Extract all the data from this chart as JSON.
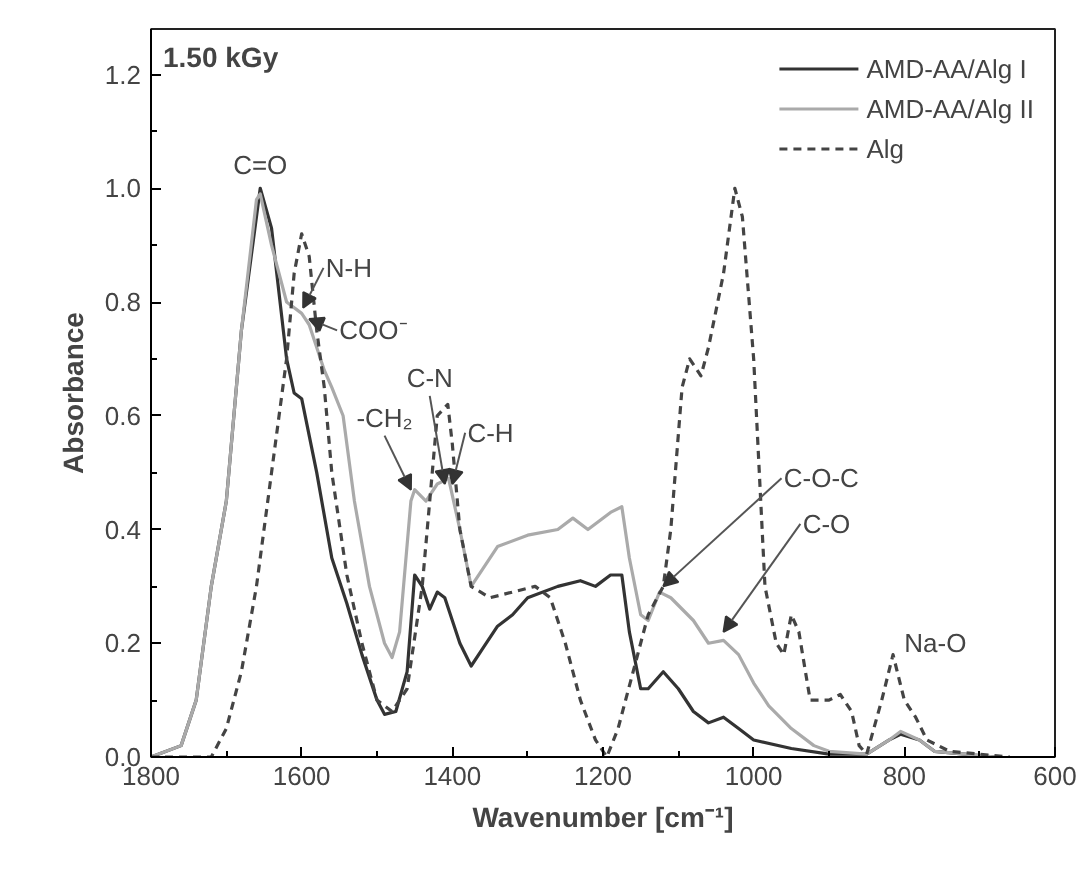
{
  "chart_data": {
    "type": "line",
    "title": "1.50 kGy",
    "xlabel": "Wavenumber [cm⁻¹]",
    "ylabel": "Absorbance",
    "xlim": [
      1800,
      600
    ],
    "xticks": [
      1800,
      1600,
      1400,
      1200,
      1000,
      800,
      600
    ],
    "ylim": [
      0,
      1.28
    ],
    "yticks": [
      {
        "value": 0,
        "label": "0.0"
      },
      0.2,
      0.4,
      0.6,
      0.8,
      {
        "value": 1,
        "label": "1.0"
      },
      1.2
    ],
    "grid": false,
    "legend": "top right",
    "series": [
      {
        "name": "AMD-AA/Alg I",
        "color": "#333333",
        "line_style": "solid",
        "x": [
          1800,
          1760,
          1740,
          1720,
          1700,
          1680,
          1655,
          1640,
          1620,
          1610,
          1600,
          1580,
          1560,
          1540,
          1520,
          1500,
          1490,
          1475,
          1460,
          1450,
          1440,
          1430,
          1420,
          1410,
          1390,
          1375,
          1360,
          1340,
          1320,
          1300,
          1260,
          1230,
          1210,
          1190,
          1175,
          1165,
          1150,
          1140,
          1120,
          1100,
          1080,
          1060,
          1040,
          1020,
          1000,
          950,
          900,
          850,
          820,
          805,
          780,
          760,
          720,
          680
        ],
        "values": [
          0,
          0.02,
          0.1,
          0.3,
          0.45,
          0.75,
          1.0,
          0.93,
          0.7,
          0.64,
          0.63,
          0.5,
          0.35,
          0.27,
          0.18,
          0.1,
          0.075,
          0.08,
          0.15,
          0.32,
          0.3,
          0.26,
          0.29,
          0.28,
          0.2,
          0.16,
          0.19,
          0.23,
          0.25,
          0.28,
          0.3,
          0.31,
          0.3,
          0.32,
          0.32,
          0.22,
          0.12,
          0.12,
          0.15,
          0.12,
          0.08,
          0.06,
          0.07,
          0.05,
          0.03,
          0.015,
          0.005,
          0.005,
          0.03,
          0.04,
          0.03,
          0.01,
          0.005,
          0
        ]
      },
      {
        "name": "AMD-AA/Alg II",
        "color": "#aaaaaa",
        "line_style": "solid",
        "x": [
          1800,
          1760,
          1740,
          1720,
          1700,
          1680,
          1660,
          1655,
          1640,
          1620,
          1600,
          1590,
          1570,
          1560,
          1545,
          1530,
          1510,
          1490,
          1480,
          1470,
          1455,
          1450,
          1435,
          1420,
          1405,
          1390,
          1375,
          1360,
          1340,
          1300,
          1260,
          1240,
          1220,
          1190,
          1175,
          1165,
          1150,
          1140,
          1125,
          1110,
          1080,
          1060,
          1040,
          1020,
          1000,
          980,
          950,
          920,
          900,
          850,
          820,
          805,
          780,
          760,
          700,
          680
        ],
        "values": [
          0,
          0.02,
          0.1,
          0.3,
          0.45,
          0.75,
          0.98,
          0.99,
          0.9,
          0.8,
          0.78,
          0.76,
          0.68,
          0.65,
          0.6,
          0.45,
          0.3,
          0.2,
          0.175,
          0.22,
          0.45,
          0.47,
          0.45,
          0.48,
          0.49,
          0.4,
          0.3,
          0.33,
          0.37,
          0.39,
          0.4,
          0.42,
          0.4,
          0.43,
          0.44,
          0.35,
          0.25,
          0.24,
          0.29,
          0.28,
          0.24,
          0.2,
          0.205,
          0.18,
          0.13,
          0.09,
          0.05,
          0.02,
          0.01,
          0.005,
          0.03,
          0.045,
          0.03,
          0.01,
          0.003,
          0
        ]
      },
      {
        "name": "Alg",
        "color": "#444444",
        "line_style": "dashed",
        "x": [
          1800,
          1720,
          1700,
          1680,
          1660,
          1640,
          1620,
          1610,
          1600,
          1590,
          1580,
          1570,
          1560,
          1540,
          1520,
          1500,
          1480,
          1460,
          1440,
          1420,
          1406,
          1400,
          1390,
          1375,
          1350,
          1320,
          1290,
          1270,
          1250,
          1230,
          1210,
          1195,
          1180,
          1160,
          1140,
          1120,
          1110,
          1095,
          1085,
          1070,
          1060,
          1040,
          1025,
          1015,
          1000,
          985,
          970,
          960,
          950,
          940,
          925,
          900,
          885,
          870,
          860,
          850,
          830,
          815,
          800,
          785,
          770,
          740,
          700,
          660
        ],
        "values": [
          0,
          0,
          0.05,
          0.15,
          0.3,
          0.5,
          0.7,
          0.85,
          0.92,
          0.88,
          0.75,
          0.65,
          0.5,
          0.32,
          0.2,
          0.1,
          0.08,
          0.12,
          0.3,
          0.6,
          0.62,
          0.55,
          0.4,
          0.3,
          0.28,
          0.29,
          0.3,
          0.28,
          0.2,
          0.1,
          0.03,
          0,
          0.05,
          0.15,
          0.25,
          0.3,
          0.4,
          0.65,
          0.7,
          0.67,
          0.72,
          0.85,
          1.0,
          0.95,
          0.7,
          0.3,
          0.2,
          0.18,
          0.25,
          0.22,
          0.1,
          0.1,
          0.11,
          0.08,
          0.02,
          0.005,
          0.1,
          0.18,
          0.1,
          0.07,
          0.03,
          0.01,
          0.005,
          0
        ]
      }
    ],
    "annotations": [
      {
        "text": "C=O",
        "x": 1655,
        "y": 1.0
      },
      {
        "text": "N-H",
        "x": 1598,
        "y": 0.79
      },
      {
        "text": "COO⁻",
        "x": 1590,
        "y": 0.77
      },
      {
        "text": "-CH₂",
        "x": 1455,
        "y": 0.47
      },
      {
        "text": "C-N",
        "x": 1410,
        "y": 0.48
      },
      {
        "text": "C-H",
        "x": 1400,
        "y": 0.48
      },
      {
        "text": "C-O-C",
        "x": 1120,
        "y": 0.3
      },
      {
        "text": "C-O",
        "x": 1040,
        "y": 0.22
      },
      {
        "text": "Na-O",
        "x": 815,
        "y": 0.18
      }
    ]
  }
}
